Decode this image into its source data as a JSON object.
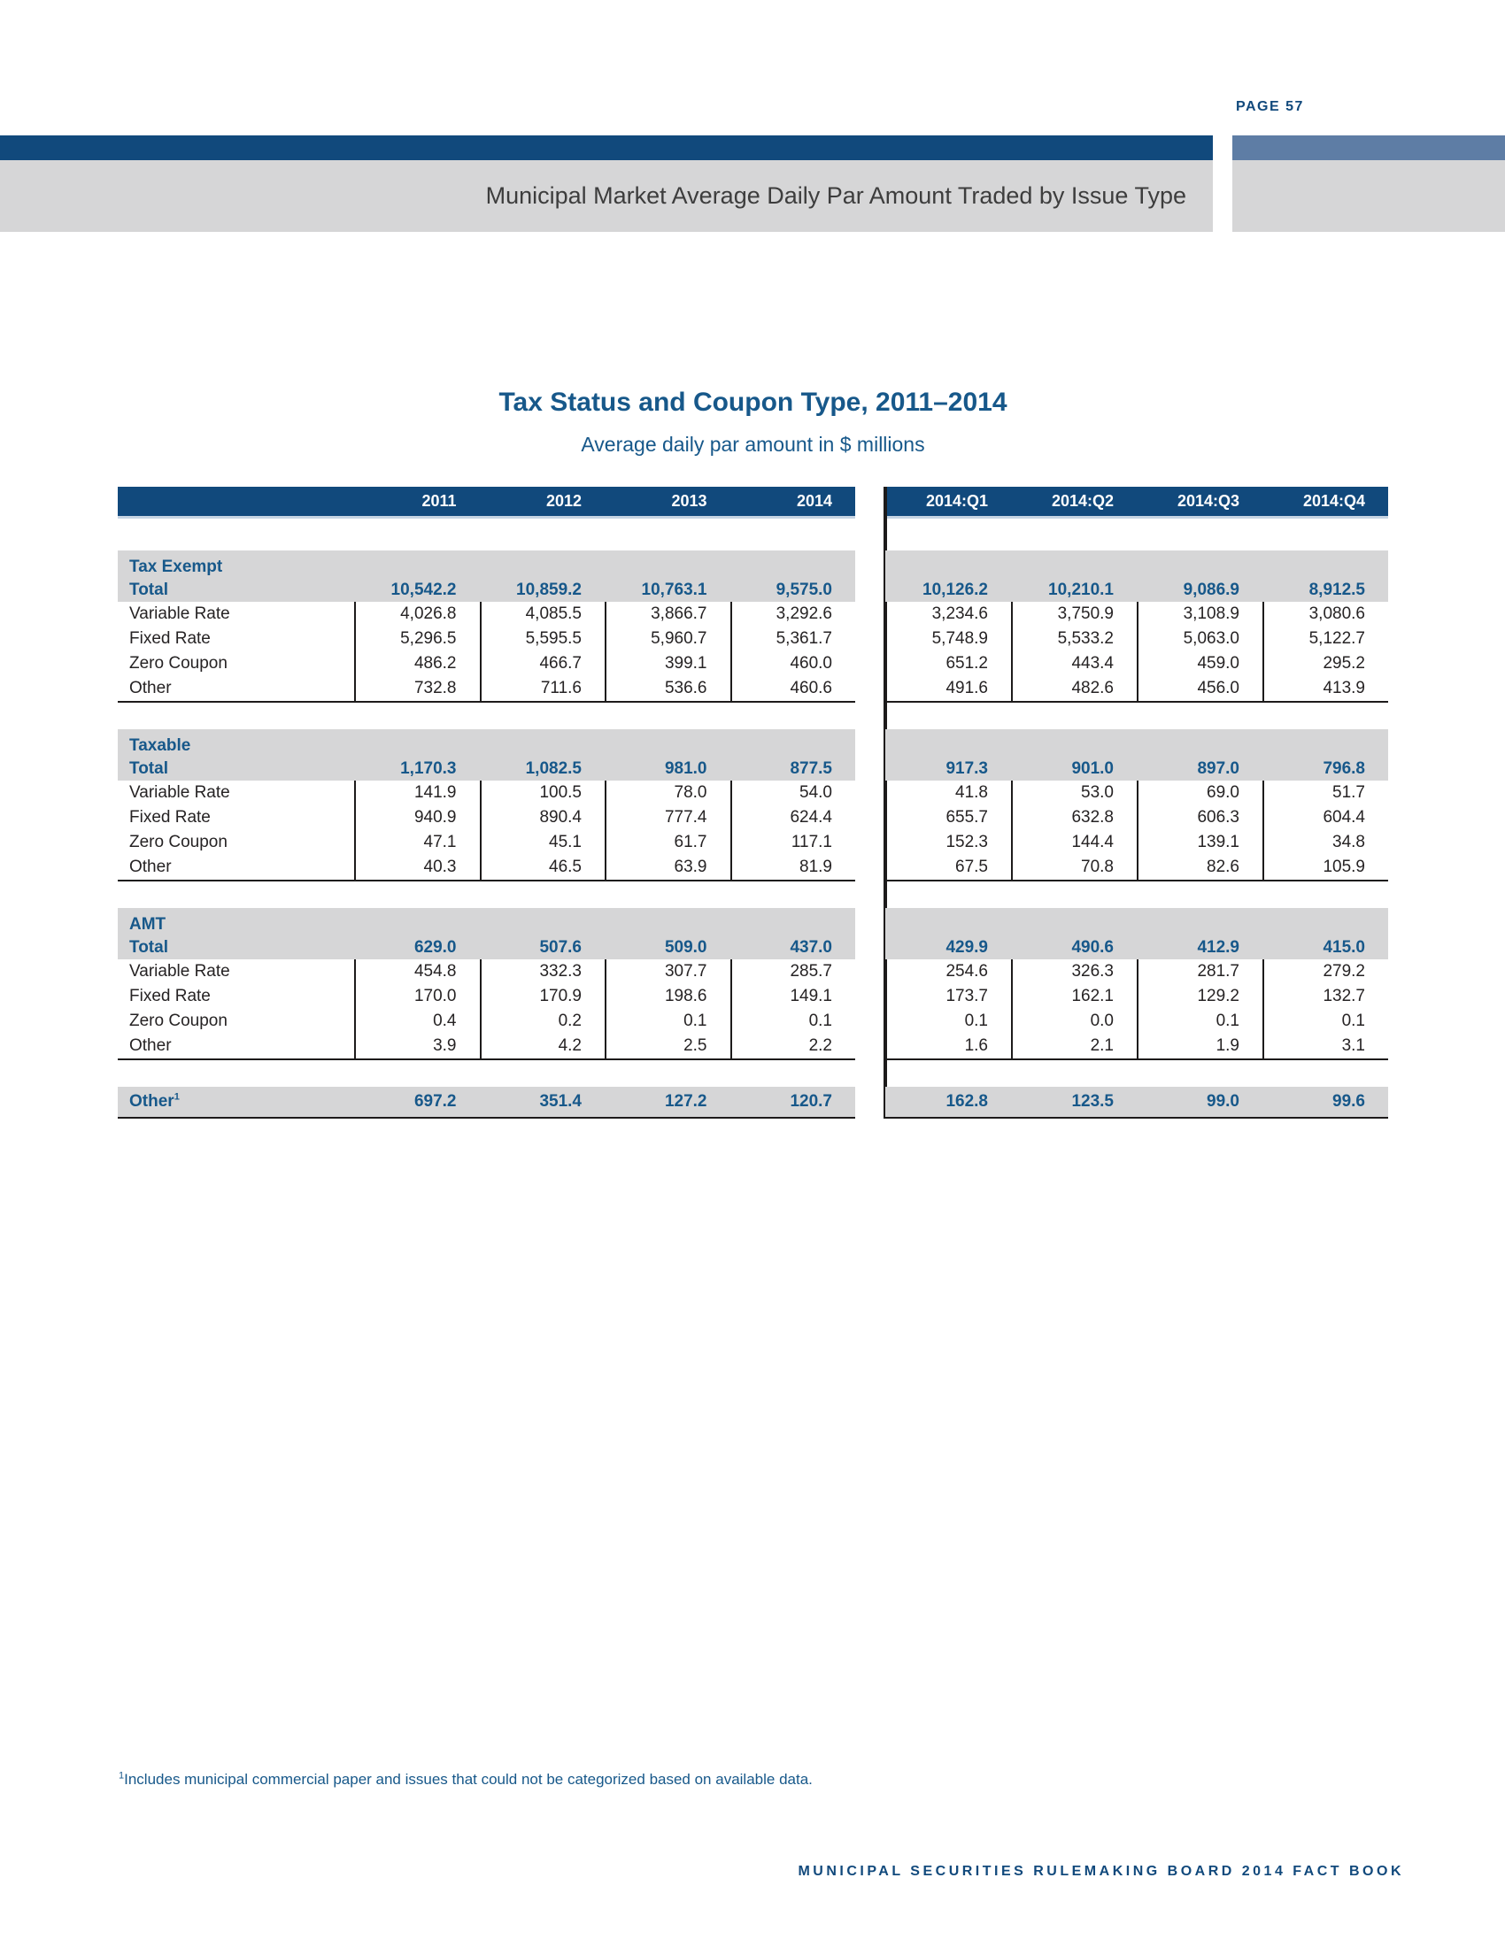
{
  "page": {
    "page_label": "PAGE 57",
    "band_title": "Municipal Market Average Daily Par Amount Traded by Issue Type",
    "footnote_marker": "1",
    "footnote_text": "Includes municipal commercial paper and issues that could not be categorized based on available data.",
    "footer": "MUNICIPAL SECURITIES RULEMAKING BOARD 2014 FACT BOOK"
  },
  "table": {
    "title": "Tax Status and Coupon Type, 2011–2014",
    "subtitle": "Average daily par amount in $ millions",
    "year_headers": [
      "2011",
      "2012",
      "2013",
      "2014"
    ],
    "quarter_headers": [
      "2014:Q1",
      "2014:Q2",
      "2014:Q3",
      "2014:Q4"
    ],
    "sections": [
      {
        "name": "Tax Exempt",
        "total_label": "Total",
        "total": {
          "years": [
            "10,542.2",
            "10,859.2",
            "10,763.1",
            "9,575.0"
          ],
          "quarters": [
            "10,126.2",
            "10,210.1",
            "9,086.9",
            "8,912.5"
          ]
        },
        "rows": [
          {
            "label": "Variable Rate",
            "years": [
              "4,026.8",
              "4,085.5",
              "3,866.7",
              "3,292.6"
            ],
            "quarters": [
              "3,234.6",
              "3,750.9",
              "3,108.9",
              "3,080.6"
            ]
          },
          {
            "label": "Fixed Rate",
            "years": [
              "5,296.5",
              "5,595.5",
              "5,960.7",
              "5,361.7"
            ],
            "quarters": [
              "5,748.9",
              "5,533.2",
              "5,063.0",
              "5,122.7"
            ]
          },
          {
            "label": "Zero Coupon",
            "years": [
              "486.2",
              "466.7",
              "399.1",
              "460.0"
            ],
            "quarters": [
              "651.2",
              "443.4",
              "459.0",
              "295.2"
            ]
          },
          {
            "label": "Other",
            "years": [
              "732.8",
              "711.6",
              "536.6",
              "460.6"
            ],
            "quarters": [
              "491.6",
              "482.6",
              "456.0",
              "413.9"
            ]
          }
        ]
      },
      {
        "name": "Taxable",
        "total_label": "Total",
        "total": {
          "years": [
            "1,170.3",
            "1,082.5",
            "981.0",
            "877.5"
          ],
          "quarters": [
            "917.3",
            "901.0",
            "897.0",
            "796.8"
          ]
        },
        "rows": [
          {
            "label": "Variable Rate",
            "years": [
              "141.9",
              "100.5",
              "78.0",
              "54.0"
            ],
            "quarters": [
              "41.8",
              "53.0",
              "69.0",
              "51.7"
            ]
          },
          {
            "label": "Fixed Rate",
            "years": [
              "940.9",
              "890.4",
              "777.4",
              "624.4"
            ],
            "quarters": [
              "655.7",
              "632.8",
              "606.3",
              "604.4"
            ]
          },
          {
            "label": "Zero Coupon",
            "years": [
              "47.1",
              "45.1",
              "61.7",
              "117.1"
            ],
            "quarters": [
              "152.3",
              "144.4",
              "139.1",
              "34.8"
            ]
          },
          {
            "label": "Other",
            "years": [
              "40.3",
              "46.5",
              "63.9",
              "81.9"
            ],
            "quarters": [
              "67.5",
              "70.8",
              "82.6",
              "105.9"
            ]
          }
        ]
      },
      {
        "name": "AMT",
        "total_label": "Total",
        "total": {
          "years": [
            "629.0",
            "507.6",
            "509.0",
            "437.0"
          ],
          "quarters": [
            "429.9",
            "490.6",
            "412.9",
            "415.0"
          ]
        },
        "rows": [
          {
            "label": "Variable Rate",
            "years": [
              "454.8",
              "332.3",
              "307.7",
              "285.7"
            ],
            "quarters": [
              "254.6",
              "326.3",
              "281.7",
              "279.2"
            ]
          },
          {
            "label": "Fixed Rate",
            "years": [
              "170.0",
              "170.9",
              "198.6",
              "149.1"
            ],
            "quarters": [
              "173.7",
              "162.1",
              "129.2",
              "132.7"
            ]
          },
          {
            "label": "Zero Coupon",
            "years": [
              "0.4",
              "0.2",
              "0.1",
              "0.1"
            ],
            "quarters": [
              "0.1",
              "0.0",
              "0.1",
              "0.1"
            ]
          },
          {
            "label": "Other",
            "years": [
              "3.9",
              "4.2",
              "2.5",
              "2.2"
            ],
            "quarters": [
              "1.6",
              "2.1",
              "1.9",
              "3.1"
            ]
          }
        ]
      }
    ],
    "other_row": {
      "label": "Other",
      "footnote_marker": "1",
      "years": [
        "697.2",
        "351.4",
        "127.2",
        "120.7"
      ],
      "quarters": [
        "162.8",
        "123.5",
        "99.0",
        "99.6"
      ]
    }
  }
}
